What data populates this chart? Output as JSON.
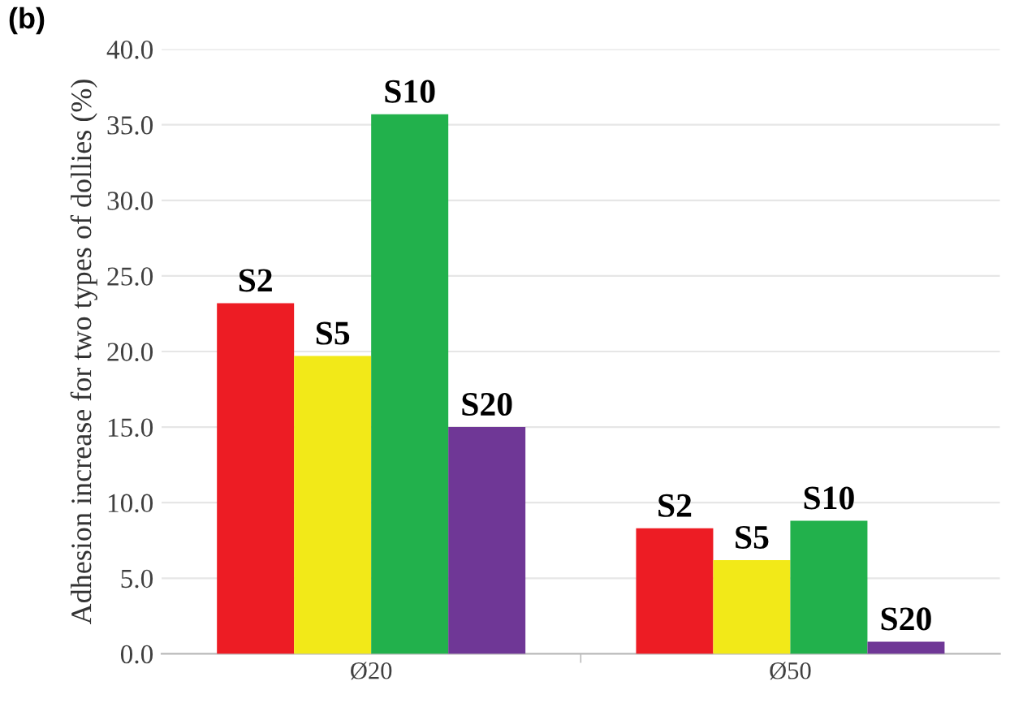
{
  "chart_data": {
    "type": "bar",
    "ylabel": "Adhesion increase for two types of dollies (%)",
    "annotations": [
      "(b)"
    ],
    "categories": [
      "Ø20",
      "Ø50"
    ],
    "series": [
      {
        "name": "S2",
        "color": "#ed1c24",
        "values": [
          23.2,
          8.3
        ]
      },
      {
        "name": "S5",
        "color": "#f2e918",
        "values": [
          19.7,
          6.2
        ]
      },
      {
        "name": "S10",
        "color": "#22b14c",
        "values": [
          35.7,
          8.8
        ]
      },
      {
        "name": "S20",
        "color": "#6f3796",
        "values": [
          15.0,
          0.8
        ]
      }
    ],
    "ylim": [
      0,
      40
    ],
    "yticks": [
      {
        "value": 0,
        "label": "0.0"
      },
      {
        "value": 5,
        "label": "5.0"
      },
      {
        "value": 10,
        "label": "10.0"
      },
      {
        "value": 15,
        "label": "15.0"
      },
      {
        "value": 20,
        "label": "20.0"
      },
      {
        "value": 25,
        "label": "25.0"
      },
      {
        "value": 30,
        "label": "30.0"
      },
      {
        "value": 35,
        "label": "35.0"
      },
      {
        "value": 40,
        "label": "40.0"
      }
    ],
    "grid": "y",
    "legend": false
  }
}
